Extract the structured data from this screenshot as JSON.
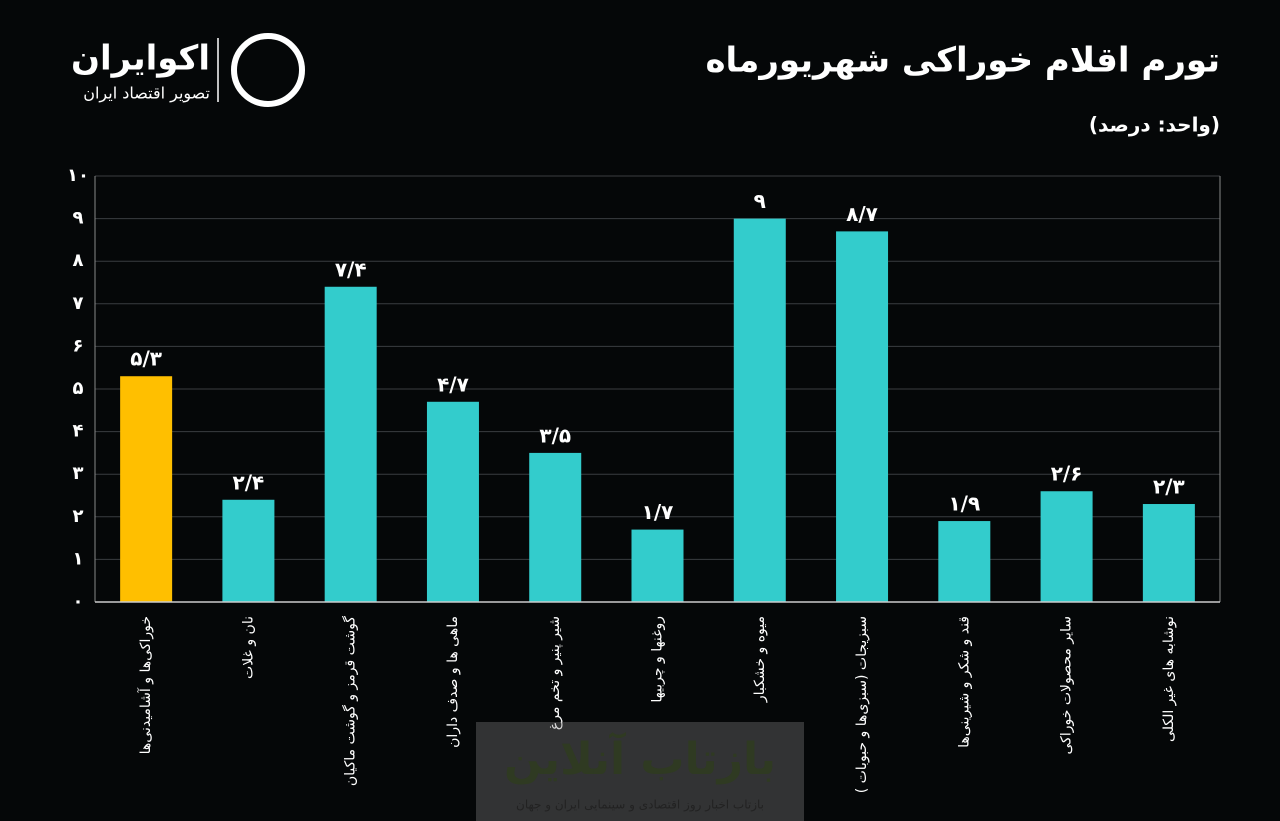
{
  "logo": {
    "name": "اکوایران",
    "tagline": "تصویر اقتصاد ایران"
  },
  "watermark": {
    "name": "بازتاب آنلاین",
    "tagline": "بازتاب اخبار روز اقتصادی و سینمایی ایران و جهان"
  },
  "chart_data": {
    "type": "bar",
    "title": "تورم اقلام خوراکی شهریورماه",
    "subtitle": "(واحد: درصد)",
    "categories": [
      "خوراکی‌ها و آشامیدنی‌ها",
      "نان و غلات",
      "گوشت قرمز و گوشت ماکیان",
      "ماهی ها و صدف داران",
      "شیر پنیر و تخم مرغ",
      "روغنها و چربیها",
      "میوه و خشکبار",
      "سبزیجات (سبزی‌ها و حبوبات )",
      "قند و شکر و شیرینی‌ها",
      "سایر محصولات خوراکی",
      "نوشابه های غیر الکلی"
    ],
    "values": [
      5.3,
      2.4,
      7.4,
      4.7,
      3.5,
      1.7,
      9,
      8.7,
      1.9,
      2.6,
      2.3
    ],
    "value_labels": [
      "۵/۳",
      "۲/۴",
      "۷/۴",
      "۴/۷",
      "۳/۵",
      "۱/۷",
      "۹",
      "۸/۷",
      "۱/۹",
      "۲/۶",
      "۲/۳"
    ],
    "colors": [
      "#ffbf00",
      "#33cccc",
      "#33cccc",
      "#33cccc",
      "#33cccc",
      "#33cccc",
      "#33cccc",
      "#33cccc",
      "#33cccc",
      "#33cccc",
      "#33cccc"
    ],
    "ylim": [
      0,
      10
    ],
    "yticks": [
      {
        "value": 0,
        "label": "۰"
      },
      {
        "value": 1,
        "label": "۱"
      },
      {
        "value": 2,
        "label": "۲"
      },
      {
        "value": 3,
        "label": "۳"
      },
      {
        "value": 4,
        "label": "۴"
      },
      {
        "value": 5,
        "label": "۵"
      },
      {
        "value": 6,
        "label": "۶"
      },
      {
        "value": 7,
        "label": "۷"
      },
      {
        "value": 8,
        "label": "۸"
      },
      {
        "value": 9,
        "label": "۹"
      },
      {
        "value": 10,
        "label": "۱۰"
      }
    ],
    "grid": true
  }
}
